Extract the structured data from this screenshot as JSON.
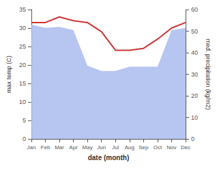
{
  "chart_data": {
    "type": "line",
    "xlabel": "date (month)",
    "ylabel": "max temp (C)",
    "y2label": "med. precipitation (kg/m2)",
    "categories": [
      "Jan",
      "Feb",
      "Mar",
      "Apr",
      "May",
      "Jun",
      "Jul",
      "Aug",
      "Sep",
      "Oct",
      "Nov",
      "Dec"
    ],
    "series": [
      {
        "type": "area",
        "axis": "y2",
        "color": "#aabbee",
        "values": [
          53.0,
          51.5,
          52.0,
          50.5,
          34.0,
          31.5,
          31.5,
          33.5,
          33.5,
          33.5,
          50.5,
          51.5
        ]
      },
      {
        "type": "line",
        "axis": "y",
        "color": "#cc3333",
        "values": [
          31.5,
          31.5,
          33.0,
          32.0,
          31.5,
          29.0,
          24.0,
          24.0,
          24.5,
          27.0,
          30.0,
          31.5
        ]
      }
    ],
    "ylim": [
      0,
      35
    ],
    "yticks": [
      0,
      5,
      10,
      15,
      20,
      25,
      30,
      35
    ],
    "y2lim": [
      0,
      60
    ],
    "y2ticks": [
      0,
      10,
      20,
      30,
      40,
      50,
      60
    ],
    "grid": false
  }
}
